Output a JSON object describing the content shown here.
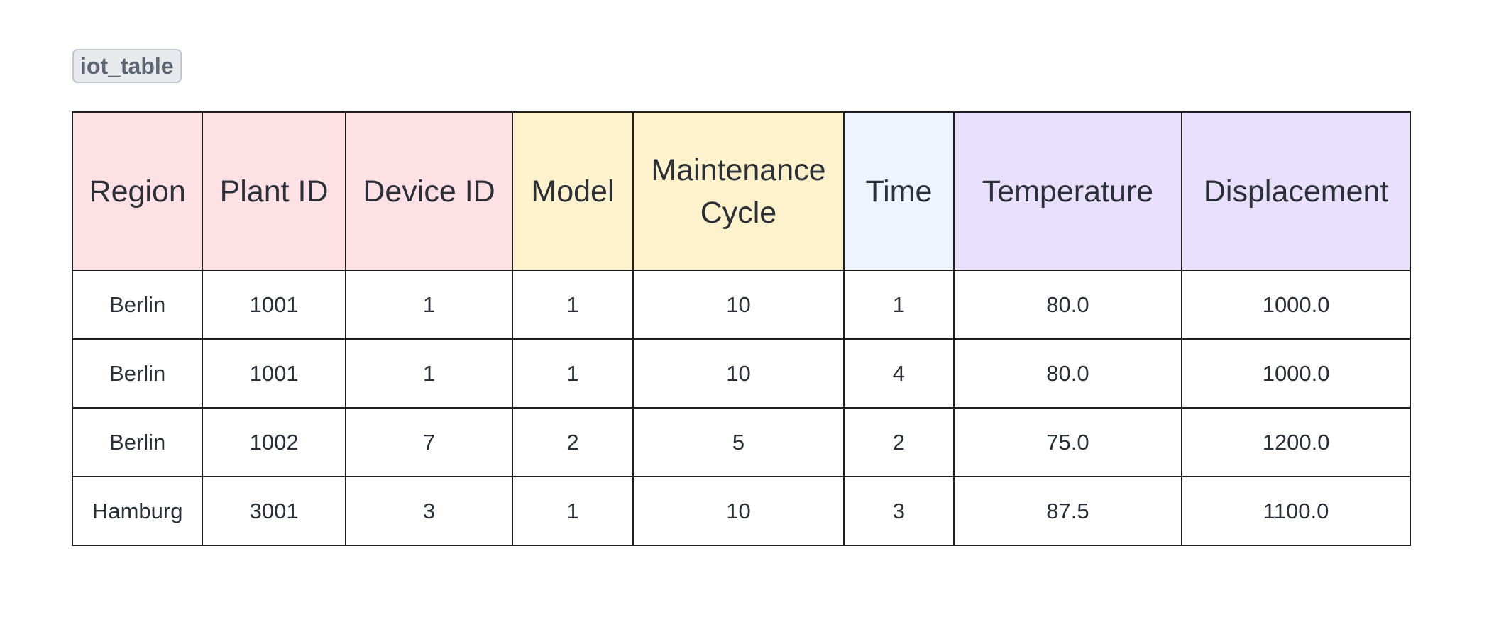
{
  "table_name": "iot_table",
  "columns": [
    {
      "label": "Region",
      "color": "#fde1e4"
    },
    {
      "label": "Plant ID",
      "color": "#fde1e4"
    },
    {
      "label": "Device ID",
      "color": "#fde1e4"
    },
    {
      "label": "Model",
      "color": "#fdf2cc"
    },
    {
      "label": "Maintenance Cycle",
      "color": "#fdf2cc"
    },
    {
      "label": "Time",
      "color": "#eef3fd"
    },
    {
      "label": "Temperature",
      "color": "#e8e0fc"
    },
    {
      "label": "Displacement",
      "color": "#e8e0fc"
    }
  ],
  "rows": [
    [
      "Berlin",
      "1001",
      "1",
      "1",
      "10",
      "1",
      "80.0",
      "1000.0"
    ],
    [
      "Berlin",
      "1001",
      "1",
      "1",
      "10",
      "4",
      "80.0",
      "1000.0"
    ],
    [
      "Berlin",
      "1002",
      "7",
      "2",
      "5",
      "2",
      "75.0",
      "1200.0"
    ],
    [
      "Hamburg",
      "3001",
      "3",
      "1",
      "10",
      "3",
      "87.5",
      "1100.0"
    ]
  ]
}
